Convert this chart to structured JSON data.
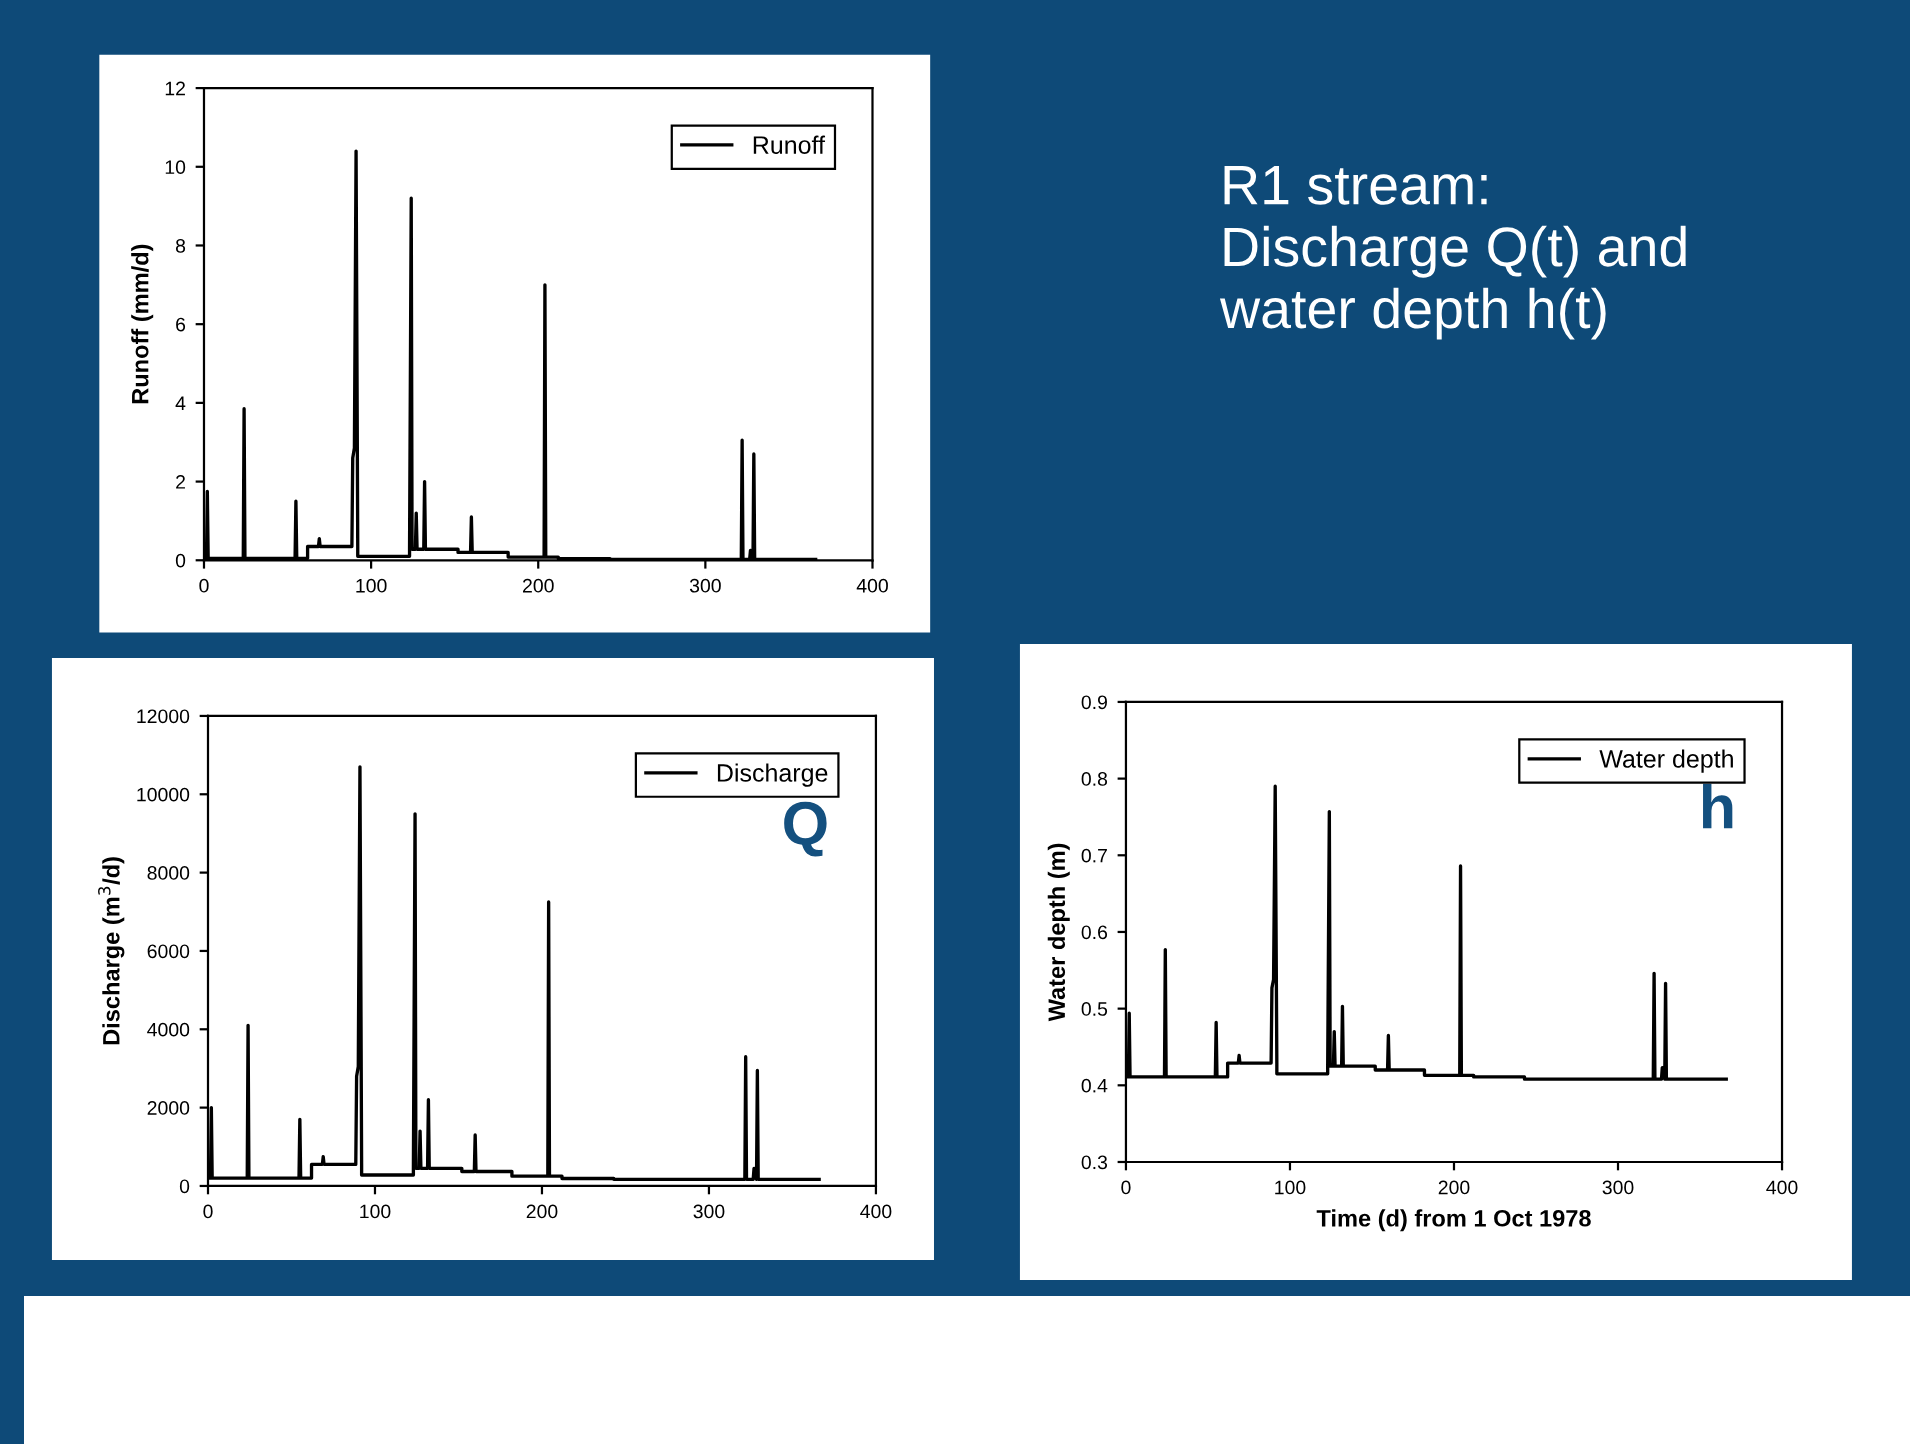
{
  "chart_data": [
    {
      "type": "line",
      "ylabel": "Runoff (mm/d)",
      "xlim": [
        0,
        400
      ],
      "xticks": [
        0,
        100,
        200,
        300,
        400
      ],
      "ylim": [
        0,
        12
      ],
      "yticks": [
        0,
        2,
        4,
        6,
        8,
        10,
        12
      ],
      "grid": false,
      "legend": "top right",
      "marker": "none",
      "line_style": "solid",
      "series": [
        {
          "name": "Runoff",
          "color": "#000000",
          "x": [
            0,
            1.5,
            2,
            2.5,
            23.5,
            24,
            24.5,
            54.5,
            55,
            55.5,
            62,
            62,
            68.5,
            69,
            69.5,
            88.5,
            89,
            90,
            91,
            92,
            92,
            123,
            123,
            124,
            124.5,
            126.5,
            127,
            127.5,
            131.5,
            132,
            132.5,
            152,
            152,
            159.5,
            160,
            160.5,
            182,
            182,
            203.5,
            204,
            204.5,
            212,
            212,
            243,
            243,
            321.5,
            322,
            322.5,
            326.5,
            327,
            328.5,
            329,
            329.5,
            366
          ],
          "values": [
            0.05,
            0.05,
            1.75,
            0.05,
            0.05,
            3.85,
            0.05,
            0.05,
            1.5,
            0.05,
            0.05,
            0.35,
            0.35,
            0.55,
            0.35,
            0.35,
            2.6,
            2.85,
            10.4,
            0.35,
            0.1,
            0.1,
            0.28,
            9.2,
            0.28,
            0.28,
            1.2,
            0.28,
            0.28,
            2.0,
            0.28,
            0.28,
            0.2,
            0.2,
            1.1,
            0.2,
            0.2,
            0.08,
            0.08,
            7.0,
            0.08,
            0.08,
            0.04,
            0.04,
            0.02,
            0.02,
            3.05,
            0.02,
            0.02,
            0.25,
            0.02,
            2.7,
            0.02,
            0.02
          ]
        }
      ]
    },
    {
      "type": "line",
      "ylabel": "Discharge (m$^{3}$/d)",
      "xlim": [
        0,
        400
      ],
      "xticks": [
        0,
        100,
        200,
        300,
        400
      ],
      "ylim": [
        0,
        12000
      ],
      "yticks": [
        0,
        2000,
        4000,
        6000,
        8000,
        10000,
        12000
      ],
      "grid": false,
      "legend": "top right",
      "marker": "none",
      "line_style": "solid",
      "annotations": [
        "Q"
      ],
      "series": [
        {
          "name": "Discharge",
          "color": "#000000",
          "x": [
            0,
            1.5,
            2,
            2.5,
            23.5,
            24,
            24.5,
            54.5,
            55,
            55.5,
            62,
            62,
            68.5,
            69,
            69.5,
            88.5,
            89,
            90,
            91,
            92,
            92,
            123,
            123,
            124,
            124.5,
            126.5,
            127,
            127.5,
            131.5,
            132,
            132.5,
            152,
            152,
            159.5,
            160,
            160.5,
            182,
            182,
            203.5,
            204,
            204.5,
            212,
            212,
            243,
            243,
            321.5,
            322,
            322.5,
            326.5,
            327,
            328.5,
            329,
            329.5,
            366
          ],
          "values": [
            200,
            200,
            2000,
            200,
            200,
            4100,
            200,
            200,
            1700,
            200,
            200,
            550,
            550,
            750,
            550,
            550,
            2800,
            3050,
            10700,
            550,
            280,
            280,
            450,
            9500,
            450,
            450,
            1400,
            450,
            450,
            2200,
            450,
            450,
            370,
            370,
            1300,
            370,
            370,
            250,
            250,
            7250,
            250,
            250,
            190,
            190,
            170,
            170,
            3300,
            170,
            170,
            450,
            170,
            2950,
            170,
            170
          ]
        }
      ]
    },
    {
      "type": "line",
      "xlabel": "Time (d) from 1 Oct 1978",
      "ylabel": "Water depth (m)",
      "xlim": [
        0,
        400
      ],
      "xticks": [
        0,
        100,
        200,
        300,
        400
      ],
      "ylim": [
        0.3,
        0.9
      ],
      "yticks": [
        0.3,
        0.4,
        0.5,
        0.6,
        0.7,
        0.8,
        0.9
      ],
      "grid": false,
      "legend": "top right",
      "marker": "none",
      "line_style": "solid",
      "annotations": [
        "h"
      ],
      "series": [
        {
          "name": "Water depth",
          "color": "#000000",
          "x": [
            0,
            1.5,
            2,
            2.5,
            23.5,
            24,
            24.5,
            54.5,
            55,
            55.5,
            62,
            62,
            68.5,
            69,
            69.5,
            88.5,
            89,
            90,
            91,
            92,
            92,
            123,
            123,
            124,
            124.5,
            126.5,
            127,
            127.5,
            131.5,
            132,
            132.5,
            152,
            152,
            159.5,
            160,
            160.5,
            182,
            182,
            203.5,
            204,
            204.5,
            212,
            212,
            243,
            243,
            321.5,
            322,
            322.5,
            326.5,
            327,
            328.5,
            329,
            329.5,
            366
          ],
          "values": [
            0.411,
            0.411,
            0.494,
            0.411,
            0.411,
            0.577,
            0.411,
            0.411,
            0.482,
            0.411,
            0.411,
            0.429,
            0.429,
            0.439,
            0.429,
            0.429,
            0.527,
            0.538,
            0.79,
            0.429,
            0.415,
            0.415,
            0.425,
            0.757,
            0.425,
            0.425,
            0.47,
            0.425,
            0.425,
            0.503,
            0.425,
            0.425,
            0.42,
            0.42,
            0.465,
            0.42,
            0.42,
            0.413,
            0.413,
            0.686,
            0.413,
            0.413,
            0.411,
            0.411,
            0.408,
            0.408,
            0.546,
            0.408,
            0.408,
            0.423,
            0.408,
            0.533,
            0.408,
            0.408
          ]
        }
      ]
    },
    {
      "type": "other",
      "title": "R1 stream:\nDischarge Q(t) and\nwater depth h(t)"
    }
  ]
}
